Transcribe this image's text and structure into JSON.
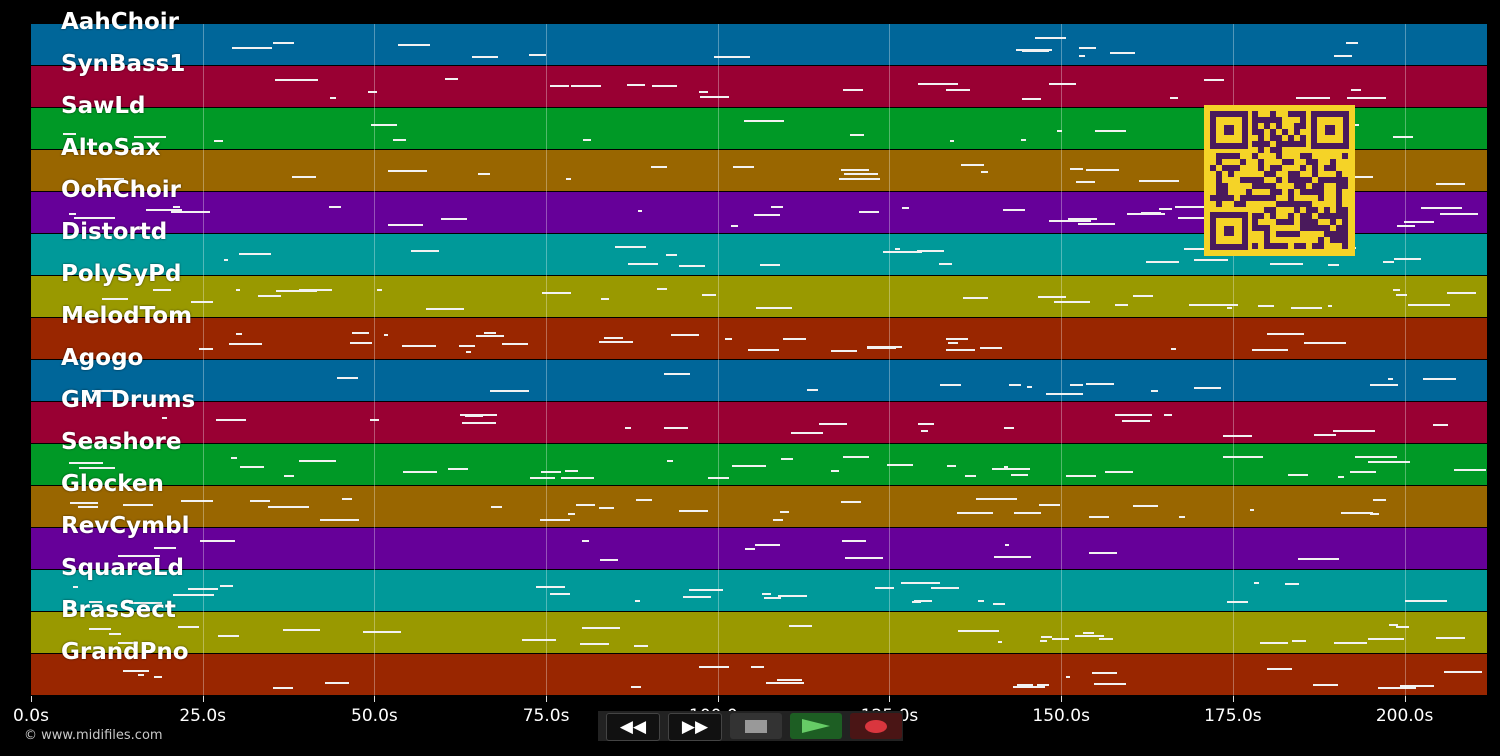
{
  "tracks": [
    {
      "name": "AahChoir",
      "color": "#006699"
    },
    {
      "name": "SynBass1",
      "color": "#990033"
    },
    {
      "name": "SawLd",
      "color": "#009926"
    },
    {
      "name": "AltoSax",
      "color": "#996600"
    },
    {
      "name": "OohChoir",
      "color": "#660099"
    },
    {
      "name": "Distortd",
      "color": "#009999"
    },
    {
      "name": "PolySyPd",
      "color": "#999900"
    },
    {
      "name": "MelodTom",
      "color": "#992600"
    },
    {
      "name": "Agogo",
      "color": "#006699"
    },
    {
      "name": "GM Drums",
      "color": "#990033"
    },
    {
      "name": "Seashore",
      "color": "#009926"
    },
    {
      "name": "Glocken",
      "color": "#996600"
    },
    {
      "name": "RevCymbl",
      "color": "#660099"
    },
    {
      "name": "SquareLd",
      "color": "#009999"
    },
    {
      "name": "BrasSect",
      "color": "#999900"
    },
    {
      "name": "GrandPno",
      "color": "#992600"
    }
  ],
  "timeline": {
    "max_seconds": 212,
    "ticks": [
      "0.0s",
      "25.0s",
      "50.0s",
      "75.0s",
      "100.0s",
      "125.0s",
      "150.0s",
      "175.0s",
      "200.0s"
    ],
    "tick_values": [
      0,
      25,
      50,
      75,
      100,
      125,
      150,
      175,
      200
    ]
  },
  "transport": {
    "rewind_label": "◀◀",
    "forward_label": "▶▶",
    "stop_icon": "stop-icon",
    "play_icon": "play-icon",
    "record_icon": "record-icon"
  },
  "copyright": "© www.midifiles.com",
  "qr_icon": "qr-code-icon"
}
